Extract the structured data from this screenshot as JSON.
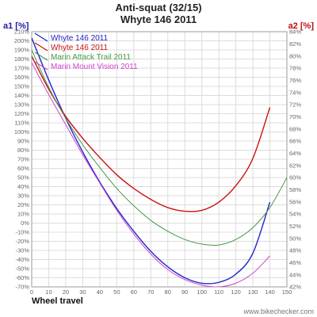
{
  "chart_data": {
    "type": "line",
    "title": "Anti-squat (32/15)",
    "subtitle": "Whyte 146 2011",
    "xlabel": "Wheel travel",
    "ylabel_left": "a1 [%]",
    "ylabel_right": "a2 [%]",
    "xlim": [
      0,
      150
    ],
    "ylim_left": [
      -70,
      210
    ],
    "ylim_right": [
      42,
      84
    ],
    "x_ticks": [
      0,
      10,
      20,
      30,
      40,
      50,
      60,
      70,
      80,
      90,
      100,
      110,
      120,
      130,
      140,
      150
    ],
    "y_left_ticks": [
      210,
      200,
      190,
      180,
      170,
      160,
      150,
      140,
      130,
      120,
      110,
      100,
      90,
      80,
      70,
      60,
      50,
      40,
      30,
      20,
      10,
      0,
      -10,
      -20,
      -30,
      -40,
      -50,
      -60,
      -70
    ],
    "y_right_ticks": [
      84,
      82,
      80,
      78,
      76,
      74,
      72,
      70,
      68,
      66,
      64,
      62,
      60,
      58,
      56,
      54,
      52,
      50,
      48,
      46,
      44,
      42
    ],
    "grid": true,
    "legend_position": "top-left",
    "series": [
      {
        "name": "Whyte 146 2011",
        "color": "#2222cc",
        "axis": "left",
        "x": [
          0,
          10,
          20,
          30,
          40,
          50,
          60,
          70,
          80,
          90,
          100,
          110,
          120,
          130,
          140
        ],
        "y": [
          203,
          157,
          115,
          78,
          45,
          16,
          -9,
          -31,
          -48,
          -60,
          -66,
          -65,
          -56,
          -33,
          23
        ]
      },
      {
        "name": "Whyte 146 2011",
        "color": "#cc1111",
        "axis": "left",
        "x": [
          0,
          10,
          20,
          30,
          40,
          50,
          60,
          70,
          80,
          90,
          100,
          110,
          120,
          130,
          140
        ],
        "y": [
          183,
          147,
          117,
          93,
          72,
          53,
          38,
          26,
          17,
          13,
          14,
          23,
          41,
          71,
          127
        ]
      },
      {
        "name": "Marin Attack Trail 2011",
        "color": "#449944",
        "axis": "left",
        "x": [
          0,
          10,
          20,
          30,
          40,
          50,
          60,
          70,
          80,
          90,
          100,
          110,
          120,
          130,
          140,
          150
        ],
        "y": [
          190,
          149,
          115,
          86,
          61,
          38,
          19,
          3,
          -9,
          -18,
          -23,
          -24,
          -18,
          -5,
          17,
          50
        ]
      },
      {
        "name": "Marin Mount Vision 2011",
        "color": "#cc44cc",
        "axis": "left",
        "x": [
          0,
          10,
          20,
          30,
          40,
          50,
          60,
          70,
          80,
          90,
          100,
          110,
          120,
          130,
          140
        ],
        "y": [
          176,
          141,
          108,
          75,
          44,
          14,
          -12,
          -34,
          -51,
          -62,
          -68,
          -70,
          -66,
          -55,
          -36
        ]
      }
    ],
    "footer": "www.bikechecker.com"
  }
}
